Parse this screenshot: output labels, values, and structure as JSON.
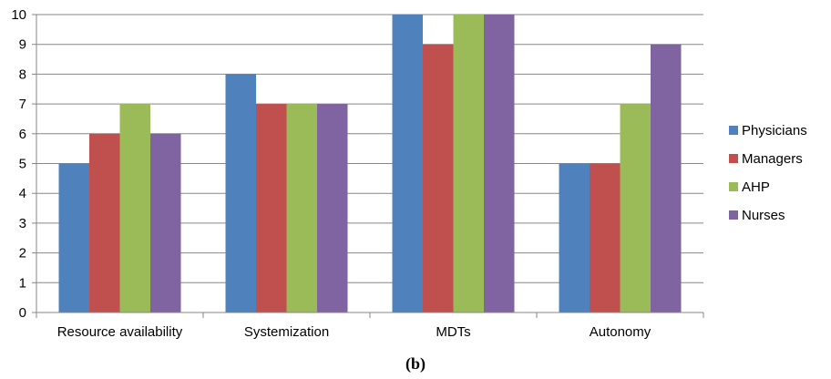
{
  "chart_data": {
    "type": "bar",
    "categories": [
      "Resource availability",
      "Systemization",
      "MDTs",
      "Autonomy"
    ],
    "series": [
      {
        "name": "Physicians",
        "color": "#4f81bd",
        "values": [
          5,
          8,
          10,
          5
        ]
      },
      {
        "name": "Managers",
        "color": "#c0504d",
        "values": [
          6,
          7,
          9,
          5
        ]
      },
      {
        "name": "AHP",
        "color": "#9bbb59",
        "values": [
          7,
          7,
          10,
          7
        ]
      },
      {
        "name": "Nurses",
        "color": "#8064a2",
        "values": [
          6,
          7,
          10,
          9
        ]
      }
    ],
    "ylim": [
      0,
      10
    ],
    "yticks": [
      0,
      1,
      2,
      3,
      4,
      5,
      6,
      7,
      8,
      9,
      10
    ],
    "grid": true,
    "legend": "right"
  },
  "caption": "(b)"
}
